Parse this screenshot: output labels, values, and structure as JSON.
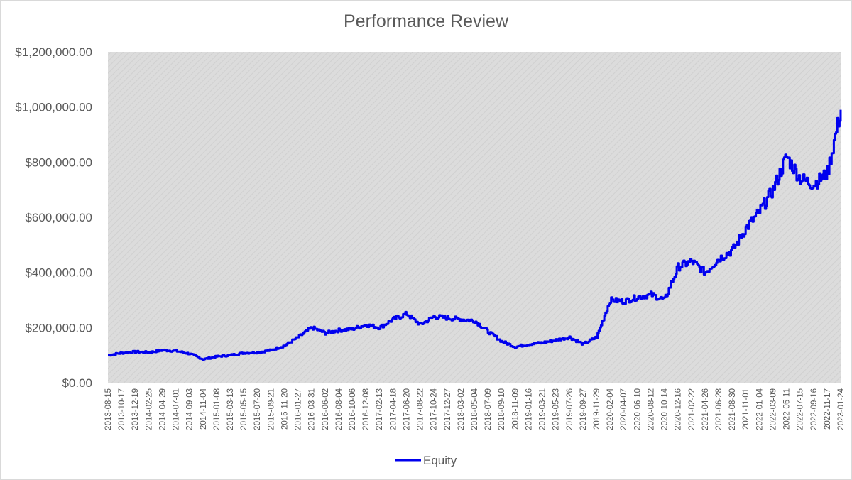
{
  "chart_data": {
    "type": "line",
    "title": "Performance Review",
    "xlabel": "",
    "ylabel": "",
    "ylim": [
      0,
      1200000
    ],
    "y_ticks": [
      0,
      200000,
      400000,
      600000,
      800000,
      1000000,
      1200000
    ],
    "y_tick_labels": [
      "$0.00",
      "$200,000.00",
      "$400,000.00",
      "$600,000.00",
      "$800,000.00",
      "$1,000,000.00",
      "$1,200,000.00"
    ],
    "x_tick_labels": [
      "2013-08-15",
      "2013-10-17",
      "2013-12-19",
      "2014-02-25",
      "2014-04-29",
      "2014-07-01",
      "2014-09-03",
      "2014-11-04",
      "2015-01-08",
      "2015-03-13",
      "2015-05-15",
      "2015-07-20",
      "2015-09-21",
      "2015-11-20",
      "2016-01-27",
      "2016-03-31",
      "2016-06-02",
      "2016-08-04",
      "2016-10-06",
      "2016-12-08",
      "2017-02-13",
      "2017-04-18",
      "2017-06-20",
      "2017-08-22",
      "2017-10-24",
      "2017-12-27",
      "2018-03-02",
      "2018-05-04",
      "2018-07-09",
      "2018-09-10",
      "2018-11-09",
      "2019-01-16",
      "2019-03-21",
      "2019-05-23",
      "2019-07-26",
      "2019-09-27",
      "2019-11-29",
      "2020-02-04",
      "2020-04-07",
      "2020-06-10",
      "2020-08-12",
      "2020-10-14",
      "2020-12-16",
      "2021-02-22",
      "2021-04-26",
      "2021-06-28",
      "2021-08-30",
      "2021-11-01",
      "2022-01-04",
      "2022-03-09",
      "2022-05-11",
      "2022-07-15",
      "2022-09-16",
      "2022-11-17",
      "2023-01-24"
    ],
    "grid": false,
    "legend_position": "bottom",
    "colors": {
      "line": "#0000ee",
      "plot_bg": "#dcdcdc",
      "hatch": "#cfcfcf",
      "text": "#595959",
      "border": "#d9d9d9"
    },
    "series": [
      {
        "name": "Equity",
        "x": [
          "2013-08-15",
          "2013-10-17",
          "2013-12-19",
          "2014-02-25",
          "2014-04-29",
          "2014-07-01",
          "2014-09-03",
          "2014-11-04",
          "2015-01-08",
          "2015-03-13",
          "2015-05-15",
          "2015-07-20",
          "2015-09-21",
          "2015-11-20",
          "2016-01-27",
          "2016-03-31",
          "2016-06-02",
          "2016-08-04",
          "2016-10-06",
          "2016-12-08",
          "2017-02-13",
          "2017-04-18",
          "2017-06-20",
          "2017-08-22",
          "2017-10-24",
          "2017-12-27",
          "2018-03-02",
          "2018-05-04",
          "2018-07-09",
          "2018-09-10",
          "2018-11-09",
          "2019-01-16",
          "2019-03-21",
          "2019-05-23",
          "2019-07-26",
          "2019-09-27",
          "2019-11-29",
          "2020-02-04",
          "2020-04-07",
          "2020-06-10",
          "2020-08-12",
          "2020-10-14",
          "2020-12-16",
          "2021-02-22",
          "2021-04-26",
          "2021-06-28",
          "2021-08-30",
          "2021-11-01",
          "2022-01-04",
          "2022-03-09",
          "2022-05-11",
          "2022-07-15",
          "2022-09-16",
          "2022-11-17",
          "2023-01-24"
        ],
        "values": [
          100000,
          108000,
          112000,
          110000,
          118000,
          115000,
          105000,
          85000,
          95000,
          100000,
          108000,
          110000,
          118000,
          135000,
          165000,
          200000,
          180000,
          190000,
          195000,
          210000,
          200000,
          230000,
          250000,
          210000,
          240000,
          235000,
          230000,
          225000,
          185000,
          150000,
          130000,
          140000,
          145000,
          155000,
          165000,
          140000,
          165000,
          300000,
          295000,
          310000,
          320000,
          300000,
          420000,
          440000,
          400000,
          450000,
          480000,
          560000,
          620000,
          700000,
          820000,
          740000,
          720000,
          760000,
          990000
        ]
      }
    ]
  }
}
